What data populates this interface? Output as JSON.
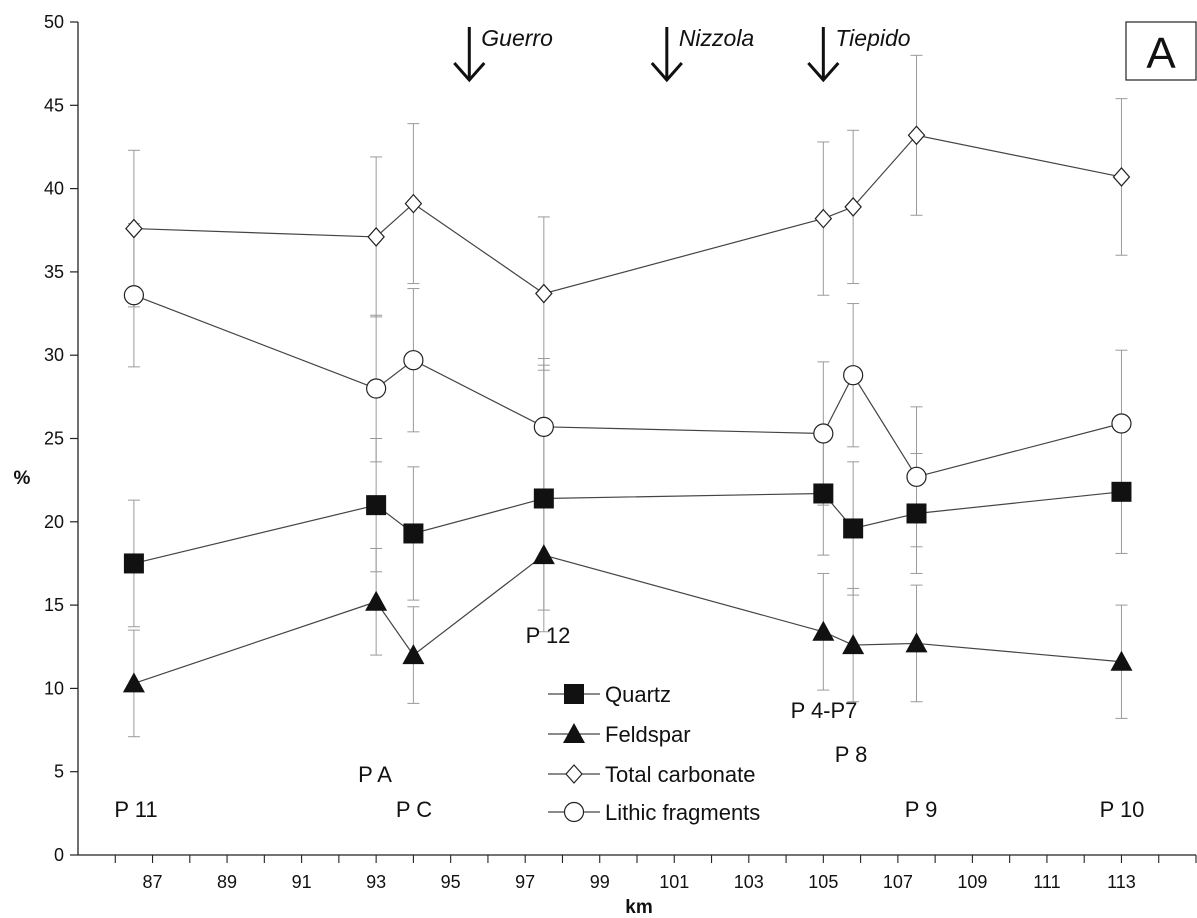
{
  "chart_data": {
    "type": "line",
    "panel_label": "A",
    "xlabel": "km",
    "ylabel": "%",
    "xlim": [
      84.5,
      114.8
    ],
    "ylim": [
      0,
      50
    ],
    "x_ticks": [
      87,
      89,
      91,
      93,
      95,
      97,
      99,
      101,
      103,
      105,
      107,
      109,
      111,
      113
    ],
    "y_ticks": [
      0,
      5,
      10,
      15,
      20,
      25,
      30,
      35,
      40,
      45,
      50
    ],
    "x": [
      86.5,
      93.0,
      94.0,
      97.5,
      105.0,
      105.8,
      107.5,
      113.0
    ],
    "series": [
      {
        "name": "Quartz",
        "marker": "filled-square",
        "values": [
          17.5,
          21.0,
          19.3,
          21.4,
          21.7,
          19.6,
          20.5,
          21.8
        ],
        "error": [
          3.8,
          4.0,
          4.0,
          8.0,
          3.7,
          4.0,
          3.6,
          3.7
        ]
      },
      {
        "name": "Feldspar",
        "marker": "filled-triangle",
        "values": [
          10.3,
          15.2,
          12.0,
          18.0,
          13.4,
          12.6,
          12.7,
          11.6
        ],
        "error": [
          3.2,
          3.2,
          2.9,
          3.3,
          3.5,
          3.4,
          3.5,
          3.4
        ]
      },
      {
        "name": "Total carbonate",
        "marker": "open-diamond",
        "values": [
          37.6,
          37.1,
          39.1,
          33.7,
          38.2,
          38.9,
          43.2,
          40.7
        ],
        "error": [
          4.7,
          4.8,
          4.8,
          4.6,
          4.6,
          4.6,
          4.8,
          4.7
        ]
      },
      {
        "name": "Lithic fragments",
        "marker": "open-circle",
        "values": [
          33.6,
          28.0,
          29.7,
          25.7,
          25.3,
          28.8,
          22.7,
          25.9
        ],
        "error": [
          4.3,
          4.4,
          4.3,
          4.1,
          4.3,
          4.3,
          4.2,
          4.4
        ]
      }
    ],
    "point_labels": [
      "P 11",
      "P A",
      "P C",
      "P 12",
      "P 4-P7",
      "P 8",
      "P 9",
      "P 10"
    ],
    "rivers": [
      {
        "name": "Guerro",
        "x": 95.5
      },
      {
        "name": "Nizzola",
        "x": 100.8
      },
      {
        "name": "Tiepido",
        "x": 105.0
      }
    ],
    "legend_position": "bottom-center",
    "grid": false
  }
}
